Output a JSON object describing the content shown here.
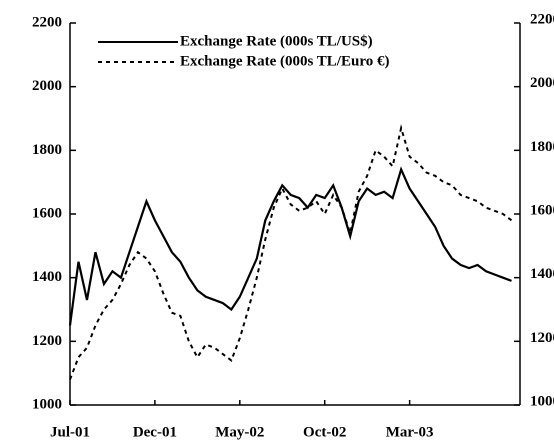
{
  "chart_data": {
    "type": "line",
    "x": [
      0,
      0.5,
      1,
      1.5,
      2,
      2.5,
      3,
      3.5,
      4,
      4.5,
      5,
      5.5,
      6,
      6.5,
      7,
      7.5,
      8,
      8.5,
      9,
      9.5,
      10,
      10.5,
      11,
      11.5,
      12,
      12.5,
      13,
      13.5,
      14,
      14.5,
      15,
      15.5,
      16,
      16.5,
      17,
      17.5,
      18,
      18.5,
      19,
      19.5,
      20,
      20.5,
      21,
      21.5,
      22,
      22.5,
      23,
      23.5,
      24,
      24.5,
      25,
      25.5,
      26
    ],
    "series": [
      {
        "name": "Exchange Rate (000s TL/US$)",
        "color": "#000000",
        "dash": "solid",
        "values": [
          1250,
          1450,
          1330,
          1480,
          1380,
          1420,
          1400,
          1480,
          1560,
          1640,
          1580,
          1530,
          1480,
          1450,
          1400,
          1360,
          1340,
          1330,
          1320,
          1300,
          1340,
          1400,
          1460,
          1580,
          1640,
          1690,
          1660,
          1650,
          1620,
          1660,
          1650,
          1690,
          1620,
          1530,
          1640,
          1680,
          1660,
          1670,
          1650,
          1740,
          1680,
          1640,
          1600,
          1560,
          1500,
          1460,
          1440,
          1430,
          1440,
          1420,
          1410,
          1400,
          1390
        ]
      },
      {
        "name": "Exchange Rate (000s TL/Euro €)",
        "color": "#000000",
        "dash": "dashed",
        "values": [
          1080,
          1150,
          1180,
          1250,
          1300,
          1330,
          1380,
          1440,
          1480,
          1460,
          1420,
          1350,
          1290,
          1280,
          1200,
          1150,
          1190,
          1180,
          1160,
          1140,
          1210,
          1300,
          1400,
          1520,
          1620,
          1680,
          1630,
          1610,
          1620,
          1640,
          1600,
          1660,
          1620,
          1540,
          1670,
          1720,
          1800,
          1780,
          1750,
          1870,
          1780,
          1760,
          1730,
          1720,
          1700,
          1690,
          1660,
          1650,
          1640,
          1620,
          1610,
          1600,
          1580
        ]
      }
    ],
    "xlim": [
      0,
      26.5
    ],
    "xticks": [
      {
        "value": 0,
        "label": "Jul-01"
      },
      {
        "value": 5,
        "label": "Dec-01"
      },
      {
        "value": 10,
        "label": "May-02"
      },
      {
        "value": 15,
        "label": "Oct-02"
      },
      {
        "value": 20,
        "label": "Mar-03"
      }
    ],
    "ylim": [
      1000,
      2200
    ],
    "yticks": [
      1000,
      1200,
      1400,
      1600,
      1800,
      2000,
      2200
    ],
    "y2lim": [
      1000,
      2200
    ],
    "y2ticks": [
      1000,
      1200,
      1400,
      1600,
      1800,
      2000,
      2200
    ],
    "legend": "top"
  }
}
